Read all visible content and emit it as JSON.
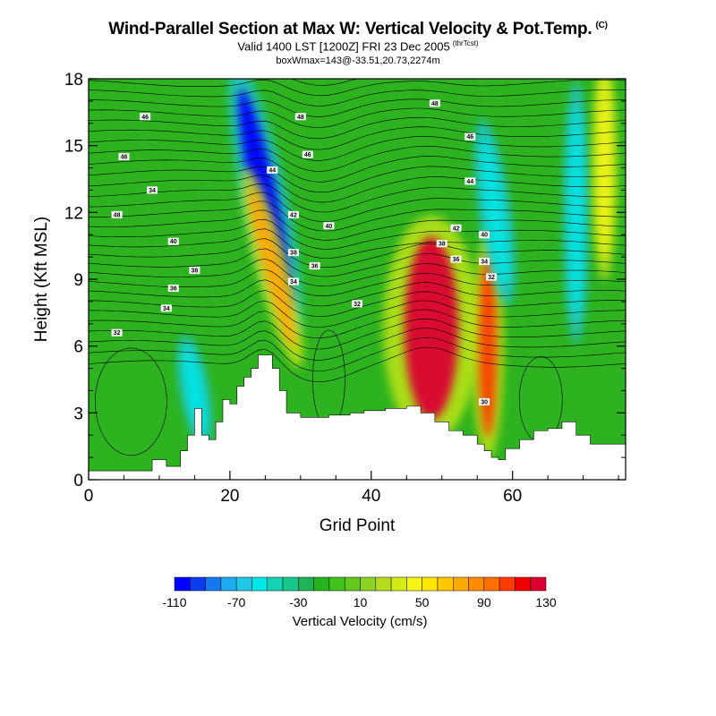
{
  "title": "Wind-Parallel Section at Max W: Vertical Velocity & Pot.Temp.",
  "title_tag": "(C)",
  "subtitle": "Valid 1400 LST [1200Z] FRI 23 Dec 2005",
  "subtitle_tag": "(thrTcst)",
  "subsubtitle": "boxWmax=143@-33.51,20.73,2274m",
  "chart_data": {
    "type": "heatmap",
    "xlabel": "Grid Point",
    "ylabel": "Height (Kft MSL)",
    "xlim": [
      0,
      76
    ],
    "ylim": [
      0,
      18
    ],
    "xticks": [
      "0",
      "20",
      "40",
      "60"
    ],
    "yticks": [
      "0",
      "3",
      "6",
      "9",
      "12",
      "15",
      "18"
    ],
    "colorbar": {
      "label": "Vertical Velocity (cm/s)",
      "tick_labels": [
        "-110",
        "-70",
        "-30",
        "10",
        "50",
        "90",
        "130"
      ],
      "colors": [
        "#0000ff",
        "#0a3cf0",
        "#1478f0",
        "#1eaaf0",
        "#1ec8e6",
        "#00e6e6",
        "#14d2b4",
        "#14c88c",
        "#1eb45a",
        "#23b41e",
        "#41c31e",
        "#64c81e",
        "#8cd223",
        "#b4dc1e",
        "#d2eb14",
        "#f5f514",
        "#ffe600",
        "#ffc800",
        "#ffaa00",
        "#ff8c00",
        "#ff6e00",
        "#ff3c00",
        "#f00000",
        "#dc0032"
      ]
    },
    "terrain_top_kft": [
      [
        0,
        0.4
      ],
      [
        6,
        0.4
      ],
      [
        9,
        0.9
      ],
      [
        11,
        0.6
      ],
      [
        13,
        1.3
      ],
      [
        14,
        2.0
      ],
      [
        15,
        3.2
      ],
      [
        16,
        2.0
      ],
      [
        17,
        1.8
      ],
      [
        18,
        2.6
      ],
      [
        19,
        3.6
      ],
      [
        20,
        3.4
      ],
      [
        21,
        4.2
      ],
      [
        22,
        4.6
      ],
      [
        23,
        5.0
      ],
      [
        24,
        5.6
      ],
      [
        25,
        5.6
      ],
      [
        26,
        5.0
      ],
      [
        27,
        4.0
      ],
      [
        28,
        3.0
      ],
      [
        30,
        2.8
      ],
      [
        34,
        2.9
      ],
      [
        37,
        3.0
      ],
      [
        39,
        3.1
      ],
      [
        42,
        3.2
      ],
      [
        45,
        3.3
      ],
      [
        47,
        3.0
      ],
      [
        49,
        2.6
      ],
      [
        51,
        2.2
      ],
      [
        53,
        2.0
      ],
      [
        55,
        1.6
      ],
      [
        56,
        1.3
      ],
      [
        57,
        1.0
      ],
      [
        58,
        0.9
      ],
      [
        59,
        1.4
      ],
      [
        61,
        1.8
      ],
      [
        63,
        2.2
      ],
      [
        65,
        2.3
      ],
      [
        67,
        2.6
      ],
      [
        69,
        2.0
      ],
      [
        71,
        1.6
      ],
      [
        76,
        1.6
      ]
    ],
    "velocity_features": [
      {
        "x": 25,
        "z": 12.5,
        "w": -110
      },
      {
        "x": 26,
        "z": 9.5,
        "w": 90
      },
      {
        "x": 48.5,
        "z": 6.8,
        "w": 143
      },
      {
        "x": 56.5,
        "z": 6.0,
        "w": 120
      },
      {
        "x": 15,
        "z": 4.0,
        "w": -60
      },
      {
        "x": 57.5,
        "z": 12,
        "w": -60
      },
      {
        "x": 69,
        "z": 12,
        "w": -60
      },
      {
        "x": 73,
        "z": 14,
        "w": 50
      }
    ],
    "isentrope_labels": [
      {
        "x": 8,
        "z": 16.3,
        "text": "46"
      },
      {
        "x": 5,
        "z": 14.5,
        "text": "46"
      },
      {
        "x": 9,
        "z": 13,
        "text": "34"
      },
      {
        "x": 4,
        "z": 11.9,
        "text": "48"
      },
      {
        "x": 12,
        "z": 10.7,
        "text": "40"
      },
      {
        "x": 15,
        "z": 9.4,
        "text": "38"
      },
      {
        "x": 12,
        "z": 8.6,
        "text": "36"
      },
      {
        "x": 11,
        "z": 7.7,
        "text": "34"
      },
      {
        "x": 4,
        "z": 6.6,
        "text": "32"
      },
      {
        "x": 30,
        "z": 16.3,
        "text": "48"
      },
      {
        "x": 26,
        "z": 13.9,
        "text": "44"
      },
      {
        "x": 31,
        "z": 14.6,
        "text": "46"
      },
      {
        "x": 29,
        "z": 11.9,
        "text": "42"
      },
      {
        "x": 34,
        "z": 11.4,
        "text": "40"
      },
      {
        "x": 29,
        "z": 10.2,
        "text": "38"
      },
      {
        "x": 32,
        "z": 9.6,
        "text": "36"
      },
      {
        "x": 29,
        "z": 8.9,
        "text": "34"
      },
      {
        "x": 38,
        "z": 7.9,
        "text": "32"
      },
      {
        "x": 49,
        "z": 16.9,
        "text": "48"
      },
      {
        "x": 54,
        "z": 15.4,
        "text": "46"
      },
      {
        "x": 54,
        "z": 13.4,
        "text": "44"
      },
      {
        "x": 52,
        "z": 11.3,
        "text": "42"
      },
      {
        "x": 56,
        "z": 11.0,
        "text": "40"
      },
      {
        "x": 50,
        "z": 10.6,
        "text": "38"
      },
      {
        "x": 52,
        "z": 9.9,
        "text": "36"
      },
      {
        "x": 56,
        "z": 9.8,
        "text": "34"
      },
      {
        "x": 57,
        "z": 9.1,
        "text": "32"
      },
      {
        "x": 56,
        "z": 3.5,
        "text": "30"
      }
    ]
  }
}
